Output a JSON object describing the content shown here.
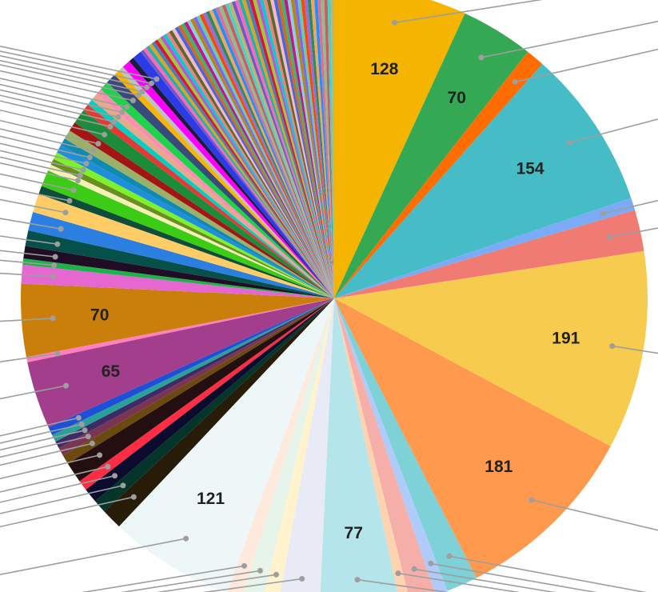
{
  "chart_data": {
    "type": "pie",
    "start_angle_deg": 0,
    "direction": "clockwise",
    "legend": "none",
    "labeled_slices": [
      {
        "value": 128,
        "label": "128",
        "color": "#F4B400"
      },
      {
        "value": 70,
        "label": "70",
        "color": "#34A853"
      },
      {
        "value": 18,
        "label": "",
        "color": "#FF6D01"
      },
      {
        "value": 154,
        "label": "154",
        "color": "#46BDC6"
      },
      {
        "value": 12,
        "label": "",
        "color": "#7BAAF7"
      },
      {
        "value": 40,
        "label": "",
        "color": "#F07B72"
      },
      {
        "value": 191,
        "label": "191",
        "color": "#F7CB4D"
      },
      {
        "value": 181,
        "label": "181",
        "color": "#FF994D"
      },
      {
        "value": 30,
        "label": "",
        "color": "#7ED1D7"
      },
      {
        "value": 12,
        "label": "",
        "color": "#AECBFA"
      },
      {
        "value": 25,
        "label": "",
        "color": "#F6AEA9"
      },
      {
        "value": 10,
        "label": "",
        "color": "#FDD3B0"
      },
      {
        "value": 77,
        "label": "77",
        "color": "#B3E5EA"
      },
      {
        "value": 40,
        "label": "",
        "color": "#E8EAF6"
      },
      {
        "value": 15,
        "label": "",
        "color": "#FFF3CD"
      },
      {
        "value": 20,
        "label": "",
        "color": "#E6F4EA"
      },
      {
        "value": 15,
        "label": "",
        "color": "#FFE9DC"
      },
      {
        "value": 121,
        "label": "121",
        "color": "#EEF7F8"
      },
      {
        "value": 20,
        "label": "",
        "color": "#261C07"
      },
      {
        "value": 13,
        "label": "",
        "color": "#03352A"
      },
      {
        "value": 14,
        "label": "",
        "color": "#0B0B2E"
      },
      {
        "value": 10,
        "label": "",
        "color": "#FF2D44"
      },
      {
        "value": 20,
        "label": "",
        "color": "#230F0F"
      },
      {
        "value": 9,
        "label": "",
        "color": "#6B4A10"
      },
      {
        "value": 8,
        "label": "",
        "color": "#7A3552"
      },
      {
        "value": 7,
        "label": "",
        "color": "#3F2A66"
      },
      {
        "value": 7,
        "label": "",
        "color": "#2AA198"
      },
      {
        "value": 8,
        "label": "",
        "color": "#1E4FD8"
      },
      {
        "value": 65,
        "label": "65",
        "color": "#A23E8C"
      },
      {
        "value": 5,
        "label": "",
        "color": "#FF7FBF"
      },
      {
        "value": 70,
        "label": "70",
        "color": "#C97F0A"
      },
      {
        "value": 18,
        "label": "",
        "color": "#E468CF"
      },
      {
        "value": 6,
        "label": "",
        "color": "#1FB14A"
      },
      {
        "value": 12,
        "label": "",
        "color": "#1F0D24"
      },
      {
        "value": 15,
        "label": "",
        "color": "#06504A"
      },
      {
        "value": 18,
        "label": "",
        "color": "#2A7FE0"
      },
      {
        "value": 18,
        "label": "",
        "color": "#FFCC66"
      },
      {
        "value": 8,
        "label": "",
        "color": "#0E4D3A"
      },
      {
        "value": 16,
        "label": "",
        "color": "#3DCC16"
      },
      {
        "value": 6,
        "label": "",
        "color": "#F5F0B5"
      },
      {
        "value": 6,
        "label": "",
        "color": "#6B8E23"
      },
      {
        "value": 7,
        "label": "",
        "color": "#7CF12C"
      },
      {
        "value": 8,
        "label": "",
        "color": "#1F8FDB"
      },
      {
        "value": 7,
        "label": "",
        "color": "#118AB2"
      },
      {
        "value": 9,
        "label": "",
        "color": "#9BB068"
      },
      {
        "value": 9,
        "label": "",
        "color": "#A31515"
      },
      {
        "value": 14,
        "label": "",
        "color": "#1B8C3A"
      },
      {
        "value": 7,
        "label": "",
        "color": "#E53935"
      },
      {
        "value": 6,
        "label": "",
        "color": "#00CFC1"
      },
      {
        "value": 7,
        "label": "",
        "color": "#E5A98B"
      },
      {
        "value": 6,
        "label": "",
        "color": "#FF8FB1"
      },
      {
        "value": 9,
        "label": "",
        "color": "#1FD24B"
      },
      {
        "value": 10,
        "label": "",
        "color": "#3A4A7A"
      },
      {
        "value": 6,
        "label": "",
        "color": "#F4B400"
      },
      {
        "value": 5,
        "label": "",
        "color": "#C0C0C0"
      },
      {
        "value": 8,
        "label": "",
        "color": "#FF00FF"
      },
      {
        "value": 5,
        "label": "",
        "color": "#1B1B3A"
      },
      {
        "value": 9,
        "label": "",
        "color": "#2D3BE6"
      }
    ],
    "tail_slices": {
      "count": 60,
      "value_each": 3.3,
      "palette": [
        "#6A5ACD",
        "#FF69B4",
        "#20B2AA",
        "#DAA520",
        "#4682B4",
        "#DC143C",
        "#9ACD32",
        "#BA55D3",
        "#00CED1",
        "#F08080",
        "#556B2F",
        "#FFB6C1",
        "#4169E1",
        "#D2691E",
        "#3CB371",
        "#C71585",
        "#87CEEB",
        "#B8860B",
        "#7B68EE",
        "#66CDAA",
        "#FF4500",
        "#9370DB",
        "#2E8B57",
        "#F4A460",
        "#1E90FF",
        "#DB7093",
        "#8FBC8F",
        "#CD5C5C",
        "#48D1CC",
        "#BDB76B"
      ]
    }
  }
}
